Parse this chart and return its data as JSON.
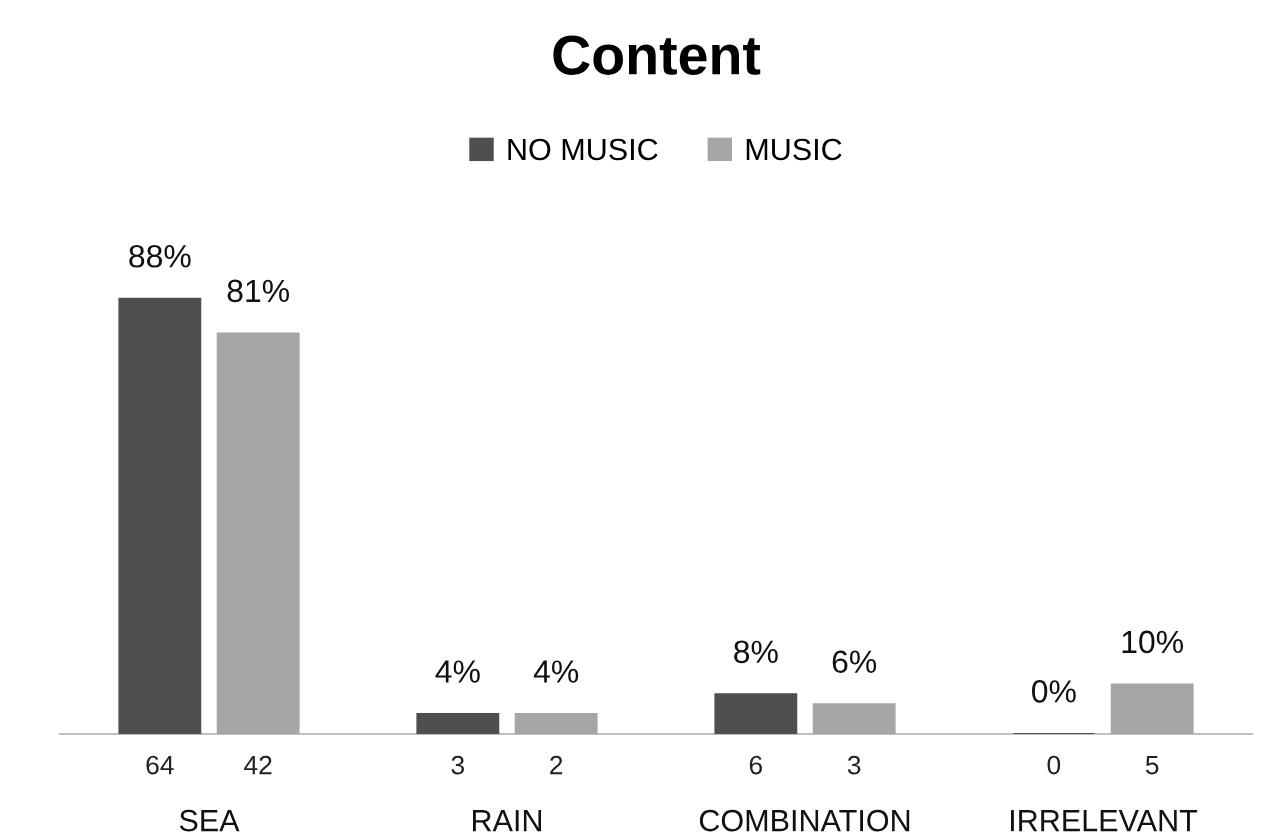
{
  "chart_data": {
    "type": "bar",
    "title": "Content",
    "categories": [
      "SEA",
      "RAIN",
      "COMBINATION",
      "IRRELEVANT"
    ],
    "series": [
      {
        "name": "NO MUSIC",
        "color": "#4f4f4f",
        "values": [
          88,
          4,
          8,
          0
        ],
        "value_labels": [
          "88%",
          "4%",
          "8%",
          "0%"
        ]
      },
      {
        "name": "MUSIC",
        "color": "#a6a6a6",
        "values": [
          81,
          4,
          6,
          10
        ],
        "value_labels": [
          "81%",
          "4%",
          "6%",
          "10%"
        ]
      }
    ],
    "annotations": [
      "64",
      "42",
      "3",
      "2",
      "6",
      "3",
      "0",
      "5"
    ],
    "legend": "top"
  }
}
